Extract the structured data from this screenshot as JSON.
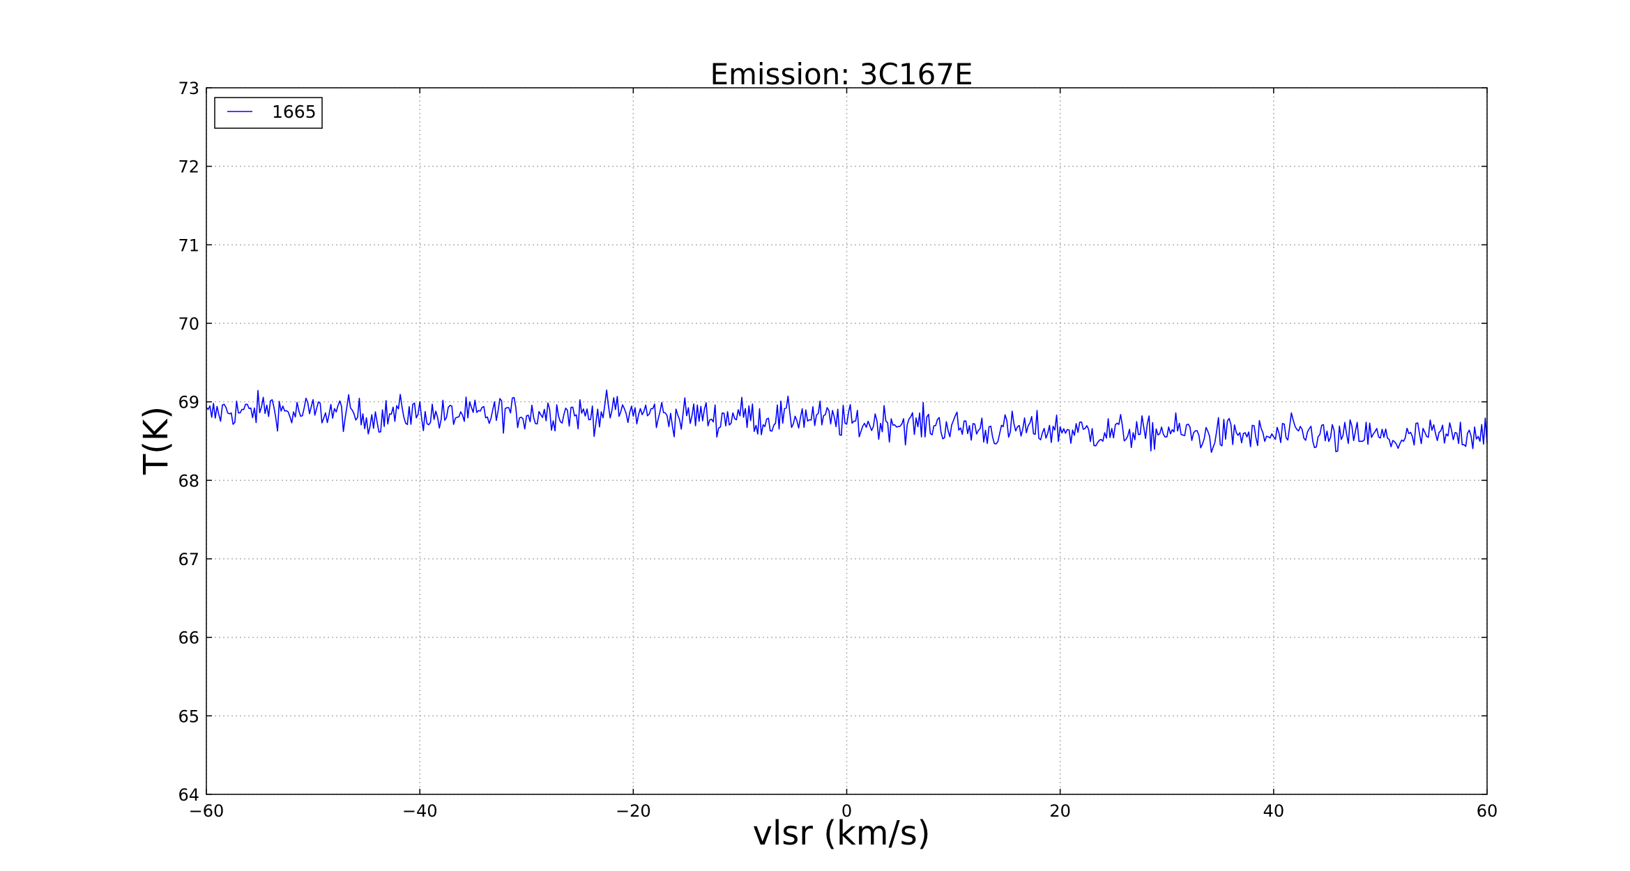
{
  "chart_data": {
    "type": "line",
    "title": "Emission: 3C167E",
    "xlabel": "vlsr (km/s)",
    "ylabel": "T(K)",
    "xlim": [
      -60,
      60
    ],
    "ylim": [
      64,
      73
    ],
    "xticks": [
      "−60",
      "−40",
      "−20",
      "0",
      "20",
      "40",
      "60"
    ],
    "yticks": [
      "64",
      "65",
      "66",
      "67",
      "68",
      "69",
      "70",
      "71",
      "72",
      "73"
    ],
    "grid": true,
    "legend_position": "top-left",
    "series": [
      {
        "name": "1665",
        "color": "#0000ff",
        "x": [
          -60,
          -58,
          -56,
          -54,
          -52,
          -50,
          -48,
          -46,
          -44,
          -42,
          -40,
          -38,
          -36,
          -34,
          -32,
          -30,
          -28,
          -26,
          -24,
          -22,
          -20,
          -18,
          -16,
          -14,
          -12,
          -10,
          -8,
          -6,
          -4,
          -2,
          0,
          2,
          4,
          6,
          8,
          10,
          12,
          14,
          16,
          18,
          20,
          22,
          24,
          26,
          28,
          30,
          32,
          34,
          36,
          38,
          40,
          42,
          44,
          46,
          48,
          50,
          52,
          54,
          56,
          58,
          60
        ],
        "y": [
          68.82,
          68.9,
          68.86,
          68.95,
          68.84,
          68.88,
          68.87,
          68.83,
          68.8,
          68.86,
          68.85,
          68.81,
          68.84,
          68.82,
          68.88,
          68.84,
          68.87,
          68.86,
          68.83,
          68.9,
          68.85,
          68.86,
          68.8,
          68.84,
          68.78,
          68.85,
          68.77,
          68.8,
          68.82,
          68.78,
          68.74,
          68.72,
          68.76,
          68.7,
          68.72,
          68.68,
          68.66,
          68.62,
          68.66,
          68.64,
          68.65,
          68.62,
          68.6,
          68.63,
          68.58,
          68.64,
          68.6,
          68.55,
          68.6,
          68.56,
          68.55,
          68.6,
          68.58,
          68.52,
          68.58,
          68.55,
          68.5,
          68.58,
          68.55,
          68.6,
          68.65
        ]
      }
    ]
  }
}
